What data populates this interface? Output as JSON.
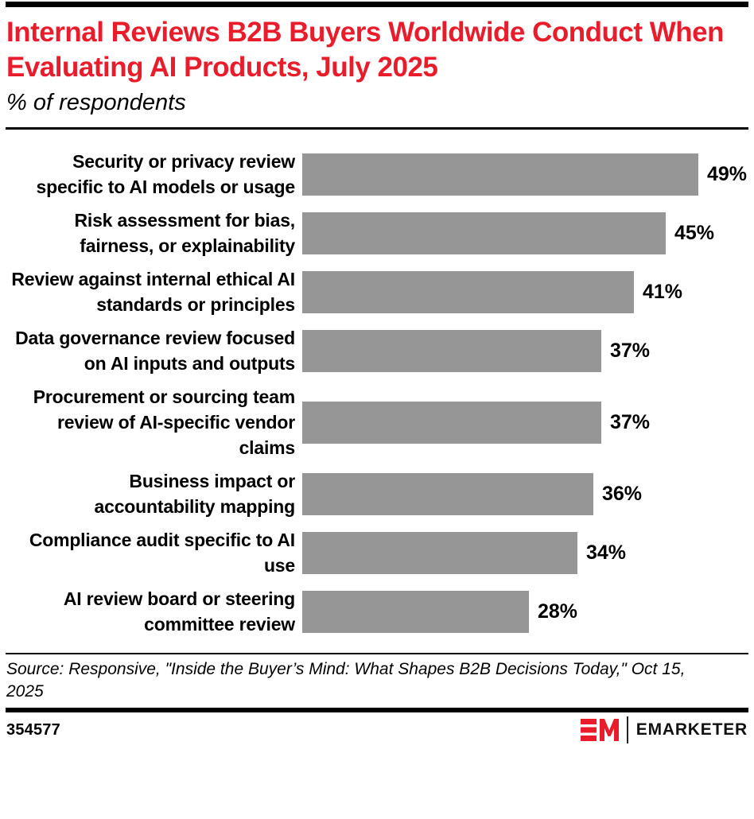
{
  "chart_data": {
    "type": "bar",
    "orientation": "horizontal",
    "title": "Internal Reviews B2B Buyers Worldwide Conduct When Evaluating AI Products, July 2025",
    "subtitle": "% of respondents",
    "unit": "%",
    "categories": [
      "Security or privacy review specific to AI models or usage",
      "Risk assessment for bias, fairness, or explainability",
      "Review against internal ethical AI standards or principles",
      "Data governance review focused on AI inputs and outputs",
      "Procurement or sourcing team review of AI-specific vendor claims",
      "Business impact or accountability mapping",
      "Compliance audit specific to AI use",
      "AI review board or steering committee review"
    ],
    "values": [
      49,
      45,
      41,
      37,
      37,
      36,
      34,
      28
    ],
    "value_labels": [
      "49%",
      "45%",
      "41%",
      "37%",
      "37%",
      "36%",
      "34%",
      "28%"
    ],
    "xlim": [
      0,
      49
    ],
    "grid": false,
    "legend": false,
    "bar_color": "#969696"
  },
  "source": "Source: Responsive, \"Inside the Buyer’s Mind: What Shapes B2B Decisions Today,\" Oct 15, 2025",
  "footer": {
    "chart_id": "354577",
    "brand_wordmark": "EMARKETER"
  },
  "colors": {
    "title_red": "#e91c2c",
    "bar_gray": "#969696",
    "text_black": "#000000"
  }
}
